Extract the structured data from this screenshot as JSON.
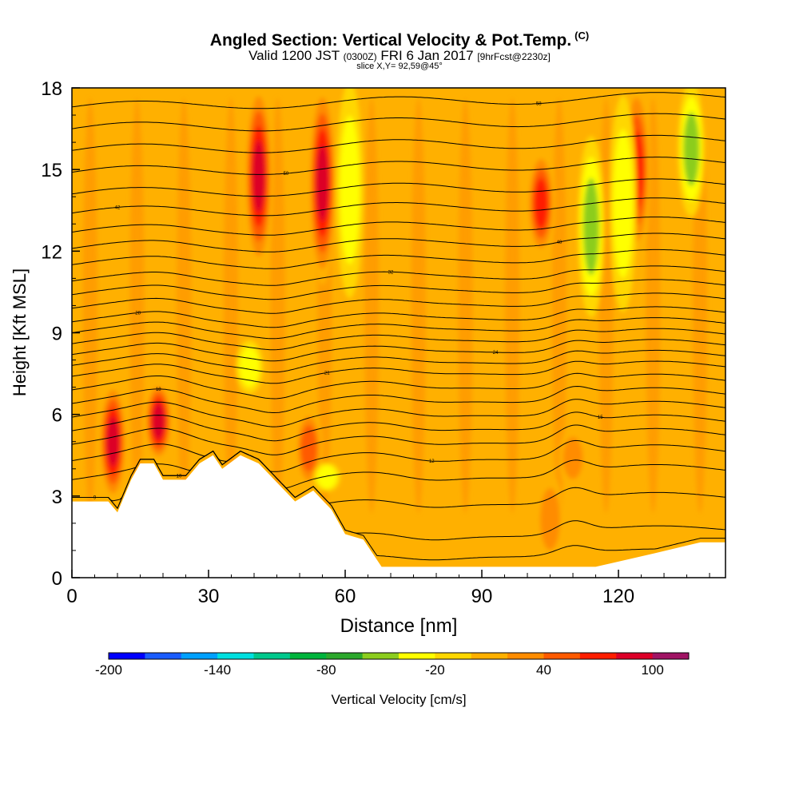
{
  "title": {
    "main": "Angled Section: Vertical Velocity & Pot.Temp.",
    "copyright": "(C)",
    "valid_prefix": "Valid 1200 JST",
    "valid_utc": "(0300Z)",
    "valid_date": "FRI 6 Jan 2017",
    "forecast": "[9hrFcst@2230z]",
    "slice": "slice X,Y= 92,59@45°"
  },
  "chart_data": {
    "type": "heatmap",
    "xlabel": "Distance [nm]",
    "ylabel": "Height [Kft MSL]",
    "xlim": [
      0,
      143.5
    ],
    "ylim": [
      0,
      18
    ],
    "x_ticks": [
      0,
      30,
      60,
      90,
      120
    ],
    "y_ticks": [
      0,
      3,
      6,
      9,
      12,
      15,
      18
    ],
    "colorbar": {
      "label": "Vertical Velocity [cm/s]",
      "min": -200,
      "max": 120,
      "step": 20,
      "tick_labels": [
        "-200",
        "-140",
        "-80",
        "-20",
        "40",
        "100"
      ],
      "colors": [
        "#0000ff",
        "#1a5cff",
        "#00a0ff",
        "#00e0e0",
        "#00c88c",
        "#00b43c",
        "#2ca82c",
        "#8ccd1e",
        "#ffff00",
        "#ffd700",
        "#ffb000",
        "#ff8c00",
        "#ff5a00",
        "#ff1e00",
        "#dc0028",
        "#a01464"
      ]
    },
    "updrafts": [
      {
        "x": 9,
        "top": 7.0,
        "bottom": 3.0,
        "level": 100
      },
      {
        "x": 19,
        "top": 7.0,
        "bottom": 4.5,
        "level": 100
      },
      {
        "x": 41,
        "top": 18.0,
        "bottom": 11.5,
        "level": 100
      },
      {
        "x": 55,
        "top": 18.0,
        "bottom": 11.0,
        "level": 100
      },
      {
        "x": 52,
        "top": 6.0,
        "bottom": 3.5,
        "level": 60
      },
      {
        "x": 103,
        "top": 15.5,
        "bottom": 12.0,
        "level": 80
      },
      {
        "x": 124,
        "top": 18.0,
        "bottom": 12.0,
        "level": 80
      },
      {
        "x": 105,
        "top": 3.5,
        "bottom": 0.8,
        "level": 40
      },
      {
        "x": 110,
        "top": 5.2,
        "bottom": 3.6,
        "level": 40
      }
    ],
    "downdrafts": [
      {
        "x": 61,
        "top": 18.0,
        "bottom": 10.5,
        "level": -40
      },
      {
        "x": 114,
        "top": 16.0,
        "bottom": 9.8,
        "level": -60
      },
      {
        "x": 121,
        "top": 17.5,
        "bottom": 10.0,
        "level": -40
      },
      {
        "x": 136,
        "top": 18.0,
        "bottom": 13.5,
        "level": -60
      },
      {
        "x": 39,
        "top": 8.5,
        "bottom": 7.0,
        "level": -40
      },
      {
        "x": 56,
        "top": 4.0,
        "bottom": 3.4,
        "level": -40
      }
    ],
    "isentropes": [
      {
        "base": 0.6,
        "amp": 0.4,
        "label": "9"
      },
      {
        "base": 1.4,
        "amp": 0.6,
        "label": "10"
      },
      {
        "base": 2.6,
        "amp": 0.7,
        "label": ""
      },
      {
        "base": 3.6,
        "amp": 0.8,
        "label": ""
      },
      {
        "base": 4.3,
        "amp": 0.9,
        "label": "12"
      },
      {
        "base": 4.9,
        "amp": 0.9,
        "label": ""
      },
      {
        "base": 5.4,
        "amp": 0.9,
        "label": "15"
      },
      {
        "base": 5.9,
        "amp": 0.9,
        "label": ""
      },
      {
        "base": 6.4,
        "amp": 0.9,
        "label": "18"
      },
      {
        "base": 6.9,
        "amp": 0.9,
        "label": ""
      },
      {
        "base": 7.4,
        "amp": 0.8,
        "label": "21"
      },
      {
        "base": 7.8,
        "amp": 0.8,
        "label": ""
      },
      {
        "base": 8.2,
        "amp": 0.8,
        "label": "24"
      },
      {
        "base": 8.6,
        "amp": 0.8,
        "label": ""
      },
      {
        "base": 9.0,
        "amp": 0.8,
        "label": ""
      },
      {
        "base": 9.4,
        "amp": 0.8,
        "label": "28"
      },
      {
        "base": 9.9,
        "amp": 0.8,
        "label": ""
      },
      {
        "base": 10.4,
        "amp": 0.8,
        "label": ""
      },
      {
        "base": 10.9,
        "amp": 0.8,
        "label": "32"
      },
      {
        "base": 11.5,
        "amp": 0.8,
        "label": ""
      },
      {
        "base": 12.1,
        "amp": 0.8,
        "label": "40"
      },
      {
        "base": 12.7,
        "amp": 0.8,
        "label": ""
      },
      {
        "base": 13.4,
        "amp": 0.8,
        "label": "42"
      },
      {
        "base": 14.1,
        "amp": 0.8,
        "label": ""
      },
      {
        "base": 14.9,
        "amp": 0.8,
        "label": "50"
      },
      {
        "base": 15.7,
        "amp": 0.8,
        "label": ""
      },
      {
        "base": 16.5,
        "amp": 0.8,
        "label": ""
      },
      {
        "base": 17.3,
        "amp": 0.7,
        "label": "58"
      }
    ],
    "terrain": [
      [
        0,
        2.0
      ],
      [
        0,
        2.8
      ],
      [
        8,
        2.8
      ],
      [
        10,
        2.4
      ],
      [
        13,
        3.6
      ],
      [
        15,
        4.2
      ],
      [
        18,
        4.2
      ],
      [
        20,
        3.6
      ],
      [
        25,
        3.6
      ],
      [
        28,
        4.2
      ],
      [
        31,
        4.5
      ],
      [
        33,
        4.0
      ],
      [
        37,
        4.5
      ],
      [
        41,
        4.2
      ],
      [
        45,
        3.5
      ],
      [
        49,
        2.8
      ],
      [
        53,
        3.2
      ],
      [
        57,
        2.5
      ],
      [
        60,
        1.6
      ],
      [
        64,
        1.4
      ],
      [
        68,
        0.4
      ],
      [
        115,
        0.4
      ],
      [
        128,
        0.9
      ],
      [
        138,
        1.3
      ],
      [
        143.5,
        1.3
      ],
      [
        143.5,
        0
      ],
      [
        0,
        0
      ]
    ]
  }
}
